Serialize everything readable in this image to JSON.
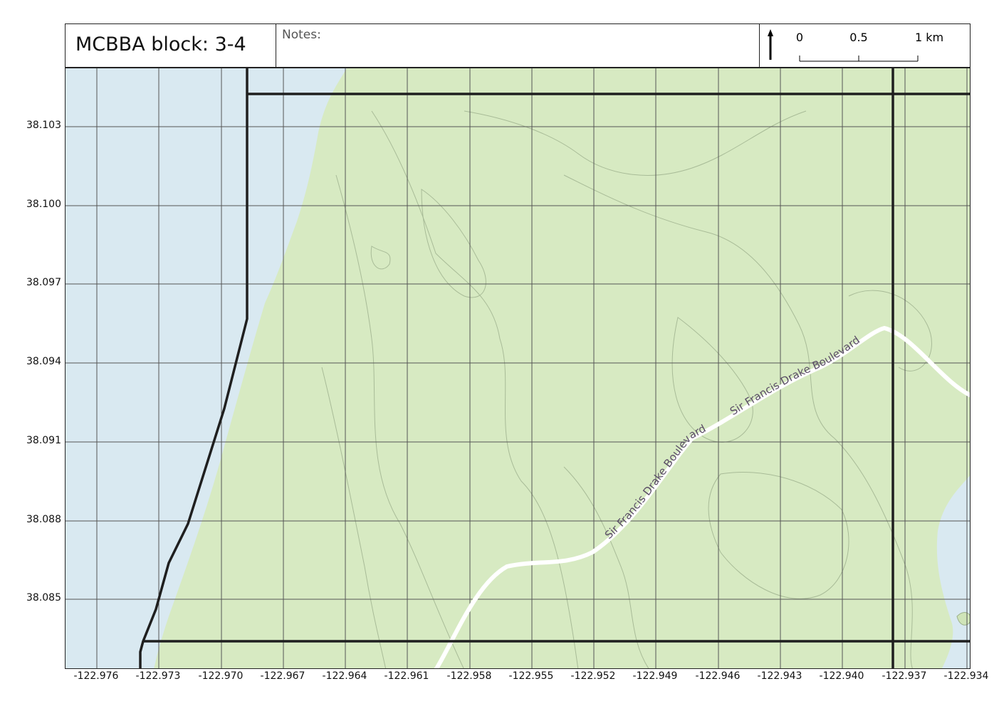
{
  "header": {
    "title": "MCBBA block: 3-4",
    "notes_label": "Notes:",
    "north_arrow_icon": "north-arrow-icon",
    "scale_bar": {
      "labels": [
        "0",
        "0.5",
        "1 km"
      ]
    }
  },
  "map": {
    "road_label": "Sir Francis Drake Boulevard",
    "colors": {
      "water": "#d9e9f1",
      "land": "#d7eac2",
      "road": "#ffffff",
      "grid": "#555555",
      "block_boundary": "#1f1f1f"
    },
    "y_axis_labels": [
      "38.103",
      "38.100",
      "38.097",
      "38.094",
      "38.091",
      "38.088",
      "38.085"
    ],
    "x_axis_labels": [
      "-122.976",
      "-122.973",
      "-122.970",
      "-122.967",
      "-122.964",
      "-122.961",
      "-122.958",
      "-122.955",
      "-122.952",
      "-122.949",
      "-122.946",
      "-122.943",
      "-122.940",
      "-122.937",
      "-122.934"
    ]
  }
}
